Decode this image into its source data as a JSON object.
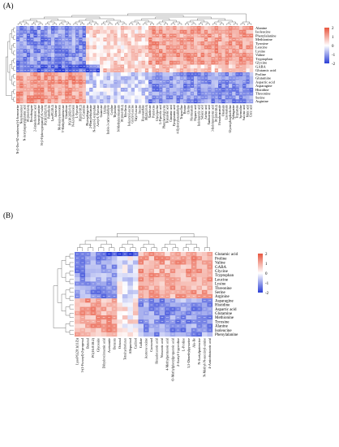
{
  "panels": [
    {
      "label": "(A)",
      "chart_data": {
        "type": "heatmap",
        "rows": [
          "Alanine",
          "Isoleucine",
          "Phenylalanine",
          "Methionine",
          "Tyrosine",
          "Leucine",
          "Lysine",
          "Valine",
          "Tryptophan",
          "Glycine",
          "GABA",
          "Glutamic acid",
          "Proline",
          "Glutamine",
          "Aspartic acid",
          "Asparagine",
          "Histidine",
          "Threonine",
          "Serine",
          "Arginine"
        ],
        "columns": [
          "N-(1-Oxo-9Z-octadecenyl)-L-homoserine",
          "Nonylresorcinol",
          "N-Acetylaspartylglutamic acid",
          "PC(16:0/22:6)",
          "Dioxohongone",
          "2-Aminohexanoic acid",
          "Stearoylcarnitine",
          "N-(3-Hydroxypropanoyl)-L-valine",
          "PC(18:1(9Z)/0:0)",
          "Pantetheine",
          "LysoPC(18:2)",
          "Adenosine",
          "Nb-Feruloylserotonin",
          "5'-Methylthioadenosine",
          "Glutathione",
          "PC(18:2(9Z)/0:0)",
          "N-Acetylserotonin",
          "L-Tyrosine",
          "PE(16:0/18:2)",
          "L-Carnitine",
          "Phytosphingosine",
          "2-Phenylethylamine",
          "N-Acetyl-L-tryptophan",
          "Acetyl-L-Tyrosine",
          "Guanosine",
          "Uridine",
          "Indole-3-carboxaldehyde",
          "Cytidine",
          "Thymidine",
          "N-Methylnicotinamide",
          "PC(16:0/18:2)",
          "Riboflavin",
          "Isoleucyl-Leucine",
          "Glycyl-Leucine",
          "Valyl-Leucine",
          "Inosine",
          "Hypoxanthine",
          "PE(18:2/0:0)",
          "Xanthosine",
          "Pyridoxine",
          "Glycylproline",
          "L-Pipecolic acid",
          "Phenylacetylglycine",
          "Kynurenic acid",
          "Cinnamic acid",
          "Pyroglutamic acid",
          "4-Hydroxybenzaldehyde",
          "Trigonelline",
          "Betaine",
          "Choline",
          "Nicotinamide",
          "Hippuric acid",
          "Indoleacrylic acid",
          "Sebacic acid",
          "Azelaic acid",
          "Xanthurenic acid",
          "3-Indolepropionic acid",
          "PC(18:0/18:2)",
          "Hexadecanamide",
          "Oleamide",
          "Linoleamide",
          "Glycerophosphocholine",
          "Sphinganine",
          "Tryptamine",
          "Spermidine",
          "Succinic acid",
          "Malic acid",
          "Citric acid"
        ],
        "values": [],
        "colorbar": {
          "ticks": [
            "2",
            "1",
            "0",
            "-1",
            "-2"
          ],
          "min": -2,
          "max": 2
        },
        "colors": {
          "low": "#2b3fd6",
          "mid": "#ffffff",
          "high": "#e8563f"
        }
      }
    },
    {
      "label": "(B)",
      "chart_data": {
        "type": "heatmap",
        "rows": [
          "Glutamic acid",
          "Proline",
          "Valine",
          "GABA",
          "Glycine",
          "Tryptophan",
          "Leucine",
          "Lysine",
          "Threonine",
          "Serine",
          "Arginine",
          "Asparagine",
          "Histidine",
          "Aspartic acid",
          "Glutamine",
          "Methionine",
          "Tyrosine",
          "Alanine",
          "Isoleucine",
          "Phenylalanine"
        ],
        "columns": [
          "LysoPC(20:1(11Z))",
          "3-(1-Furanyl)-2-propenal",
          "Butanal",
          "PC(16:0/18:2)",
          "Glycoside",
          "Dihydrocinnamic acid",
          "Acetamide",
          "Benzoin",
          "Octanal",
          "Tetrahydrofuran",
          "Allopurinol",
          "Cadinol",
          "Gallate",
          "Acetone oxime",
          "Curcumol",
          "Hexadecanoic acid",
          "Nonanoic acid",
          "4-Methylpentanoic acid",
          "O-Methylphenylpropanoic acid",
          "2-Acetyl-1-pyrroline",
          "L-Proline",
          "3,5-Dimethylpyrazine",
          "Ala-Ile",
          "N-Acetylputrescine",
          "N-Methyl-N-succinyl-amine",
          "4-Aminobutanoic acid"
        ],
        "values": [],
        "colorbar": {
          "ticks": [
            "2",
            "1",
            "0",
            "-1",
            "-2"
          ],
          "min": -2,
          "max": 2
        },
        "colors": {
          "low": "#2b3fd6",
          "mid": "#ffffff",
          "high": "#e8563f"
        }
      }
    }
  ]
}
